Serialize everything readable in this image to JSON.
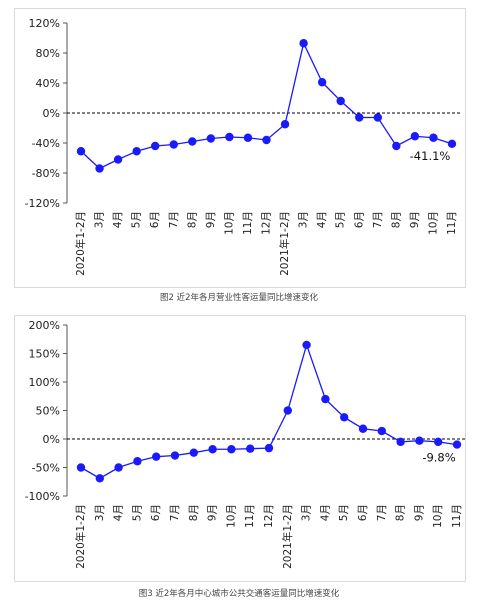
{
  "captions": {
    "chart1": "图2 近2年各月营业性客运量同比增速变化",
    "chart2": "图3 近2年各月中心城市公共交通客运量同比增速变化"
  },
  "colors": {
    "series": "#1a1aff",
    "axis": "#555555",
    "reference_line": "#000000"
  },
  "chart_data": [
    {
      "type": "line",
      "title": "",
      "categories": [
        "2020年1-2月",
        "3月",
        "4月",
        "5月",
        "6月",
        "7月",
        "8月",
        "9月",
        "10月",
        "11月",
        "12月",
        "2021年1-2月",
        "3月",
        "4月",
        "5月",
        "6月",
        "7月",
        "8月",
        "9月",
        "10月",
        "11月"
      ],
      "series": [
        {
          "values": [
            -51,
            -74,
            -62,
            -51,
            -44,
            -42,
            -38,
            -34,
            -32,
            -33,
            -36,
            -15,
            93,
            41,
            16,
            -6,
            -6,
            -44,
            -31,
            -33,
            -41.1
          ]
        }
      ],
      "y_ticks": [
        "120%",
        "80%",
        "40%",
        "0%",
        "-40%",
        "-80%",
        "-120%"
      ],
      "ylim": [
        -120,
        120
      ],
      "annotation": "-41.1%",
      "reference_line": 0,
      "grid": false
    },
    {
      "type": "line",
      "title": "",
      "categories": [
        "2020年1-2月",
        "3月",
        "4月",
        "5月",
        "6月",
        "7月",
        "8月",
        "9月",
        "10月",
        "11月",
        "12月",
        "2021年1-2月",
        "3月",
        "4月",
        "5月",
        "6月",
        "7月",
        "8月",
        "9月",
        "10月",
        "11月"
      ],
      "series": [
        {
          "values": [
            -50,
            -69,
            -50,
            -39,
            -31,
            -29,
            -24,
            -18,
            -18,
            -17,
            -16,
            50,
            165,
            70,
            38,
            18,
            14,
            -5,
            -3,
            -5,
            -9.8
          ]
        }
      ],
      "y_ticks": [
        "200%",
        "150%",
        "100%",
        "50%",
        "0%",
        "-50%",
        "-100%"
      ],
      "ylim": [
        -100,
        200
      ],
      "annotation": "-9.8%",
      "reference_line": 0,
      "grid": false
    }
  ]
}
